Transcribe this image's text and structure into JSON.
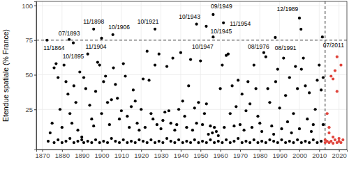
{
  "chart_data": {
    "type": "scatter",
    "y_label": "Etendue spatiale (% France)",
    "xlim": [
      1867,
      2024
    ],
    "ylim": [
      -4,
      103
    ],
    "xticks": [
      1870,
      1880,
      1890,
      1900,
      1910,
      1920,
      1930,
      1940,
      1950,
      1960,
      1970,
      1980,
      1990,
      2000,
      2010,
      2020
    ],
    "yticks": [
      25,
      50,
      75,
      100
    ],
    "grid": true,
    "hline": 75,
    "vline": 2013,
    "series": [
      {
        "color": "#000000",
        "marker": "circle",
        "x": [
          1872.4,
          1883.6,
          1885.7,
          1896,
          1900,
          1905.7,
          1927,
          1948,
          1952.9,
          1956.4,
          1961.6,
          1956.4,
          1987.8,
          2000,
          2000.8,
          2011.6,
          1874,
          1875,
          1876,
          1877,
          1878,
          1879,
          1880,
          1881,
          1882,
          1883,
          1884,
          1885,
          1886,
          1887,
          1888,
          1889,
          1890,
          1891,
          1892,
          1893,
          1894,
          1895,
          1896,
          1897,
          1898,
          1899,
          1900,
          1901,
          1902,
          1903,
          1904,
          1905,
          1906,
          1907,
          1908,
          1909,
          1910,
          1911,
          1912,
          1913,
          1914,
          1915,
          1916,
          1917,
          1918,
          1919,
          1920,
          1921,
          1922,
          1923,
          1924,
          1925,
          1926,
          1927,
          1928,
          1929,
          1930,
          1931,
          1932,
          1933,
          1934,
          1935,
          1936,
          1937,
          1938,
          1939,
          1940,
          1941,
          1942,
          1943,
          1944,
          1945,
          1946,
          1947,
          1948,
          1949,
          1950,
          1951,
          1952,
          1953,
          1954,
          1955,
          1956,
          1957,
          1958,
          1959,
          1960,
          1961,
          1962,
          1963,
          1964,
          1965,
          1966,
          1967,
          1968,
          1969,
          1970,
          1971,
          1972,
          1973,
          1974,
          1975,
          1976,
          1977,
          1978,
          1979,
          1980,
          1981,
          1982,
          1983,
          1984,
          1985,
          1986,
          1987,
          1988,
          1989,
          1990,
          1991,
          1992,
          1993,
          1994,
          1995,
          1996,
          1997,
          1998,
          1999,
          2000,
          2001,
          2002,
          2003,
          2004,
          2005,
          2006,
          2007,
          2008,
          2009,
          2010,
          2011,
          2012,
          2012,
          1873,
          1876,
          1878,
          1880,
          1882,
          1884,
          1886,
          1888,
          1890,
          1891,
          1893,
          1895,
          1897,
          1899,
          1901,
          1903,
          1905,
          1907,
          1909,
          1911,
          1913,
          1915,
          1917,
          1919,
          1921,
          1923,
          1925,
          1927,
          1929,
          1931,
          1933,
          1935,
          1937,
          1939,
          1941,
          1943,
          1945,
          1947,
          1949,
          1951,
          1953,
          1955,
          1957,
          1959,
          1961,
          1963,
          1965,
          1967,
          1969,
          1971,
          1973,
          1975,
          1977,
          1979,
          1981,
          1983,
          1985,
          1987,
          1989,
          1991,
          1993,
          1995,
          1997,
          1999,
          2001,
          2003,
          2005,
          2007,
          2009,
          2011
        ],
        "values": [
          75,
          75.5,
          73,
          83,
          76.4,
          79,
          83,
          86.6,
          85,
          93.5,
          87.5,
          77.3,
          76.9,
          91,
          82.9,
          77.3,
          8,
          15,
          55,
          58,
          48,
          25,
          12,
          57,
          45,
          36,
          22,
          15,
          42,
          30,
          10,
          52,
          5,
          48,
          40,
          65,
          28,
          18,
          13,
          38,
          59,
          57,
          22,
          45,
          49,
          30,
          14,
          32,
          55,
          43,
          33,
          18,
          24,
          58,
          49,
          20,
          12,
          27,
          39,
          31,
          15,
          10,
          25,
          47,
          12,
          67,
          46,
          22,
          18,
          57,
          14,
          65,
          11,
          17,
          23,
          56,
          24,
          15,
          62,
          10,
          14,
          25,
          66,
          31,
          20,
          12,
          42,
          61,
          10,
          26,
          15,
          30,
          60,
          14,
          22,
          29,
          7,
          13,
          8,
          12,
          9,
          6,
          40,
          57,
          12,
          64,
          65,
          22,
          42,
          13,
          27,
          46,
          14,
          36,
          10,
          24,
          45,
          29,
          12,
          57,
          40,
          20,
          15,
          9,
          66,
          63,
          40,
          30,
          13,
          7,
          45,
          54,
          26,
          11,
          62,
          35,
          16,
          48,
          8,
          22,
          56,
          40,
          11,
          54,
          62,
          42,
          18,
          37,
          9,
          14,
          25,
          46,
          57,
          39,
          48,
          14,
          2,
          1,
          3,
          1,
          2,
          4,
          1,
          2,
          3,
          1,
          2,
          1,
          3,
          1,
          2,
          1,
          4,
          2,
          1,
          3,
          1,
          2,
          1,
          3,
          2,
          1,
          3,
          1,
          2,
          1,
          4,
          2,
          1,
          3,
          1,
          2,
          1,
          3,
          1,
          2,
          1,
          3,
          1,
          2,
          1,
          3,
          1,
          2,
          4,
          1,
          2,
          1,
          3,
          1,
          2,
          1,
          3,
          2,
          1,
          3,
          1,
          2,
          1,
          3,
          1,
          2,
          1,
          3,
          1,
          2
        ]
      },
      {
        "color": "#e0443c",
        "marker": "circle",
        "x": [
          2013,
          2013,
          2014,
          2014,
          2015,
          2015,
          2015,
          2016,
          2016,
          2017,
          2017,
          2017,
          2018,
          2018,
          2019,
          2019,
          2019,
          2020,
          2020,
          2021,
          2021,
          2022
        ],
        "values": [
          1,
          3,
          22,
          2,
          8,
          1,
          12,
          2,
          49,
          0.5,
          47,
          5,
          3,
          53,
          1,
          38,
          63,
          2,
          4,
          57,
          1,
          3
        ]
      }
    ],
    "annotations": [
      {
        "text": "11/1864",
        "x": 1872.4,
        "y": 75
      },
      {
        "text": "07/1893",
        "x": 1883.6,
        "y": 75.5
      },
      {
        "text": "10/1895",
        "x": 1885.7,
        "y": 73
      },
      {
        "text": "11/1898",
        "x": 1896,
        "y": 83
      },
      {
        "text": "11/1904",
        "x": 1900,
        "y": 76.4
      },
      {
        "text": "10/1906",
        "x": 1905.7,
        "y": 79
      },
      {
        "text": "10/1921",
        "x": 1927,
        "y": 83
      },
      {
        "text": "10/1943",
        "x": 1948,
        "y": 86.6
      },
      {
        "text": "10/1945",
        "x": 1952.9,
        "y": 85
      },
      {
        "text": "09/1949",
        "x": 1956.4,
        "y": 93.5
      },
      {
        "text": "11/1954",
        "x": 1961.6,
        "y": 87.5
      },
      {
        "text": "10/1947",
        "x": 1956.4,
        "y": 77.3
      },
      {
        "text": "08/1976",
        "x": 1987.8,
        "y": 76.9
      },
      {
        "text": "12/1989",
        "x": 2000,
        "y": 91
      },
      {
        "text": "08/1991",
        "x": 2000.8,
        "y": 82.9
      },
      {
        "text": "07/2011",
        "x": 2011.6,
        "y": 77.3
      }
    ]
  }
}
